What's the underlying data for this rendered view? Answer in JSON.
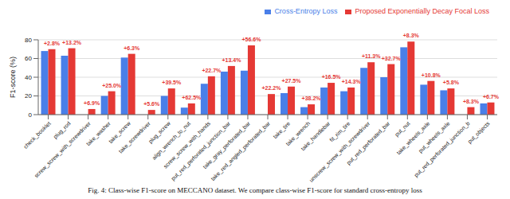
{
  "chart_data": {
    "type": "bar",
    "y_label": "F1-score (%)",
    "caption": "Fig. 4: Class-wise F1-score on MECCANO dataset. We compare class-wise F1-score for standard cross-entropy loss",
    "categories": [
      "check_booklet",
      "plug_rod",
      "screw_screw_with_screwdriver",
      "take_washer",
      "take_screw",
      "take_screwdriver",
      "plug_screw",
      "align_wrench_to_nut",
      "screw_screw_with_hands",
      "put_red_perforated_junction_bar",
      "take_gray_perforated_bar",
      "take_red_angled_perforated_bar",
      "take_tire",
      "take_wrench",
      "take_handlebar",
      "fit_rim_tire",
      "unscrew_screw_with_screwdriver",
      "put_red_perforated_bar",
      "put_nut",
      "take_wheels_axle",
      "put_wheels_axle",
      "put_red_perforated_junction_b",
      "put_objects"
    ],
    "series": [
      {
        "name": "Cross-Entropy Loss",
        "color": "#4a7fe8",
        "values": [
          68,
          63,
          0,
          20,
          61,
          0,
          20,
          7.5,
          33,
          46,
          47,
          0,
          23,
          8,
          29,
          25,
          50,
          40,
          72,
          32,
          26,
          0,
          12
        ]
      },
      {
        "name": "Proposed Exponentially Decay Focal Loss",
        "color": "#e53935",
        "values": [
          70,
          71,
          6,
          25,
          65,
          5,
          28,
          12,
          41,
          52,
          74,
          22,
          30,
          11,
          34,
          29,
          56,
          54,
          78,
          36,
          28,
          8,
          13
        ]
      }
    ],
    "annotations": [
      "+2.8%",
      "+13.2%",
      "+6.9%",
      "+25.0%",
      "+6.3%",
      "+5.6%",
      "+39.5%",
      "+62.5%",
      "+22.7%",
      "+13.4%",
      "+56.6%",
      "+22.2%",
      "+27.5%",
      "+38.2%",
      "+16.5%",
      "+14.3%",
      "+11.3%",
      "+32.7%",
      "+8.3%",
      "+10.8%",
      "+5.8%",
      "+8.3%",
      "+6.7%"
    ],
    "ylim": [
      0,
      80
    ],
    "yticks": [
      0,
      20,
      40,
      60,
      80
    ],
    "grid": true,
    "legend": "top"
  }
}
